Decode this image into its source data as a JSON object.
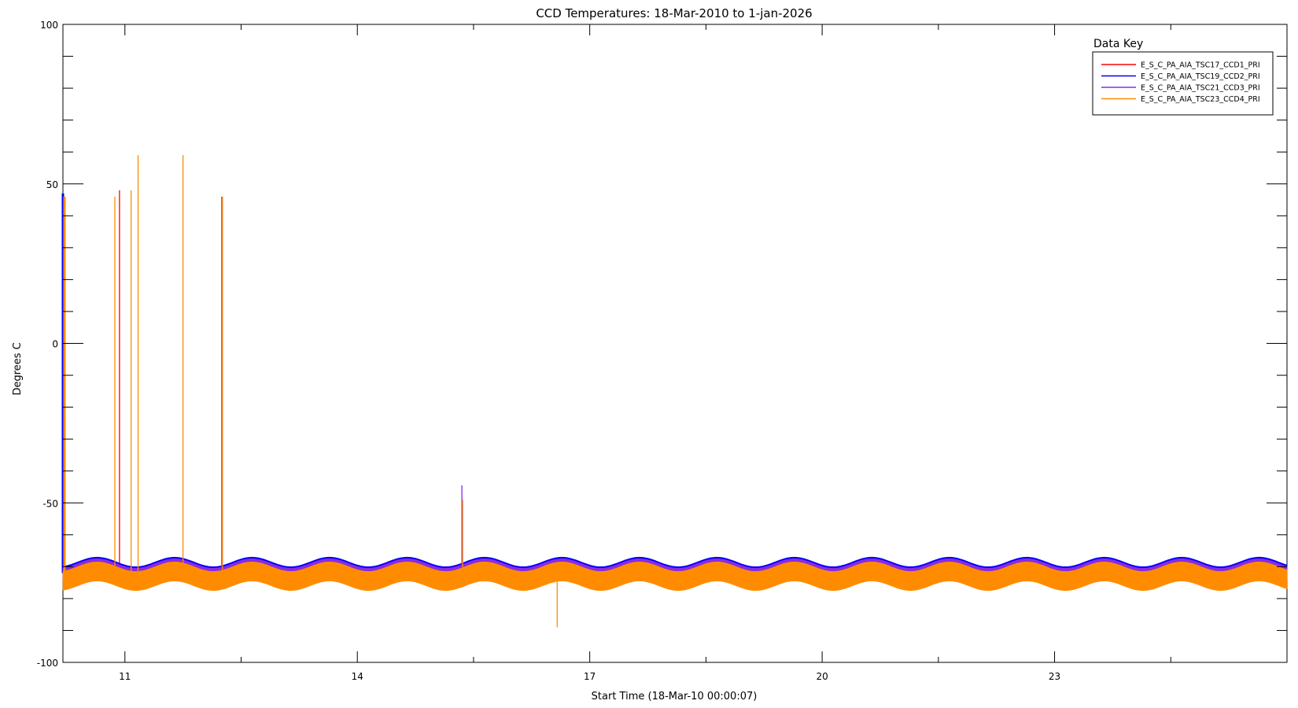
{
  "chart_data": {
    "type": "line",
    "title": "CCD Temperatures: 18-Mar-2010 to 1-jan-2026",
    "xlabel": "Start Time (18-Mar-10 00:00:07)",
    "ylabel": "Degrees C",
    "xlim": [
      10.2,
      26.0
    ],
    "ylim": [
      -100,
      100
    ],
    "x_ticks": [
      11,
      14,
      17,
      20,
      23
    ],
    "x_tick_labels": [
      "11",
      "14",
      "17",
      "20",
      "23"
    ],
    "y_ticks": [
      -100,
      -50,
      0,
      50,
      100
    ],
    "y_tick_labels": [
      "-100",
      "-50",
      "0",
      "50",
      "100"
    ],
    "grid": false,
    "legend": {
      "title": "Data Key",
      "placement": "top-right",
      "entries": [
        {
          "name": "E_S_C_PA_AIA_TSC17_CCD1_PRI",
          "color": "#ff0000"
        },
        {
          "name": "E_S_C_PA_AIA_TSC19_CCD2_PRI",
          "color": "#0000ff"
        },
        {
          "name": "E_S_C_PA_AIA_TSC21_CCD3_PRI",
          "color": "#8a2be2"
        },
        {
          "name": "E_S_C_PA_AIA_TSC23_CCD4_PRI",
          "color": "#ff8c00"
        }
      ]
    },
    "series": [
      {
        "name": "E_S_C_PA_AIA_TSC17_CCD1_PRI",
        "color": "#ff0000",
        "baseline": {
          "x": [
            10.2,
            26.0
          ],
          "mean": -71.5,
          "amplitude": 1.5,
          "period_years": 1.0,
          "band_low": -73.5,
          "band_high": -70.0
        },
        "spikes": [
          {
            "x": 10.93,
            "from": -72,
            "to": 48
          }
        ]
      },
      {
        "name": "E_S_C_PA_AIA_TSC19_CCD2_PRI",
        "color": "#0000ff",
        "baseline": {
          "x": [
            10.2,
            26.0
          ],
          "mean": -70.5,
          "amplitude": 1.5,
          "period_years": 1.0,
          "band_low": -72.0,
          "band_high": -68.5
        },
        "initial": {
          "x": 10.2,
          "from": -72,
          "to": 47
        },
        "spikes": []
      },
      {
        "name": "E_S_C_PA_AIA_TSC21_CCD3_PRI",
        "color": "#8a2be2",
        "baseline": {
          "x": [
            10.2,
            26.0
          ],
          "mean": -70.8,
          "amplitude": 1.5,
          "period_years": 1.0,
          "band_low": -72.5,
          "band_high": -69.0
        },
        "spikes": [
          {
            "x": 12.25,
            "from": -72,
            "to": 46
          },
          {
            "x": 15.35,
            "from": -72,
            "to": -44.5
          }
        ]
      },
      {
        "name": "E_S_C_PA_AIA_TSC23_CCD4_PRI",
        "color": "#ff8c00",
        "baseline": {
          "x": [
            10.2,
            26.0
          ],
          "mean": -73.5,
          "amplitude": 1.5,
          "period_years": 1.0,
          "band_low": -76.0,
          "band_high": -70.0
        },
        "initial": {
          "x": 10.22,
          "from": -76,
          "to": 46
        },
        "spikes": [
          {
            "x": 10.87,
            "from": -74,
            "to": 46
          },
          {
            "x": 11.08,
            "from": -74,
            "to": 48
          },
          {
            "x": 11.17,
            "from": -74,
            "to": 59
          },
          {
            "x": 11.75,
            "from": -74,
            "to": 59
          },
          {
            "x": 12.26,
            "from": -74,
            "to": 46
          },
          {
            "x": 15.36,
            "from": -74,
            "to": -49
          },
          {
            "x": 16.58,
            "from": -72,
            "to": -89
          },
          {
            "x": 12.72,
            "from": -74,
            "to": -69
          }
        ]
      }
    ]
  }
}
